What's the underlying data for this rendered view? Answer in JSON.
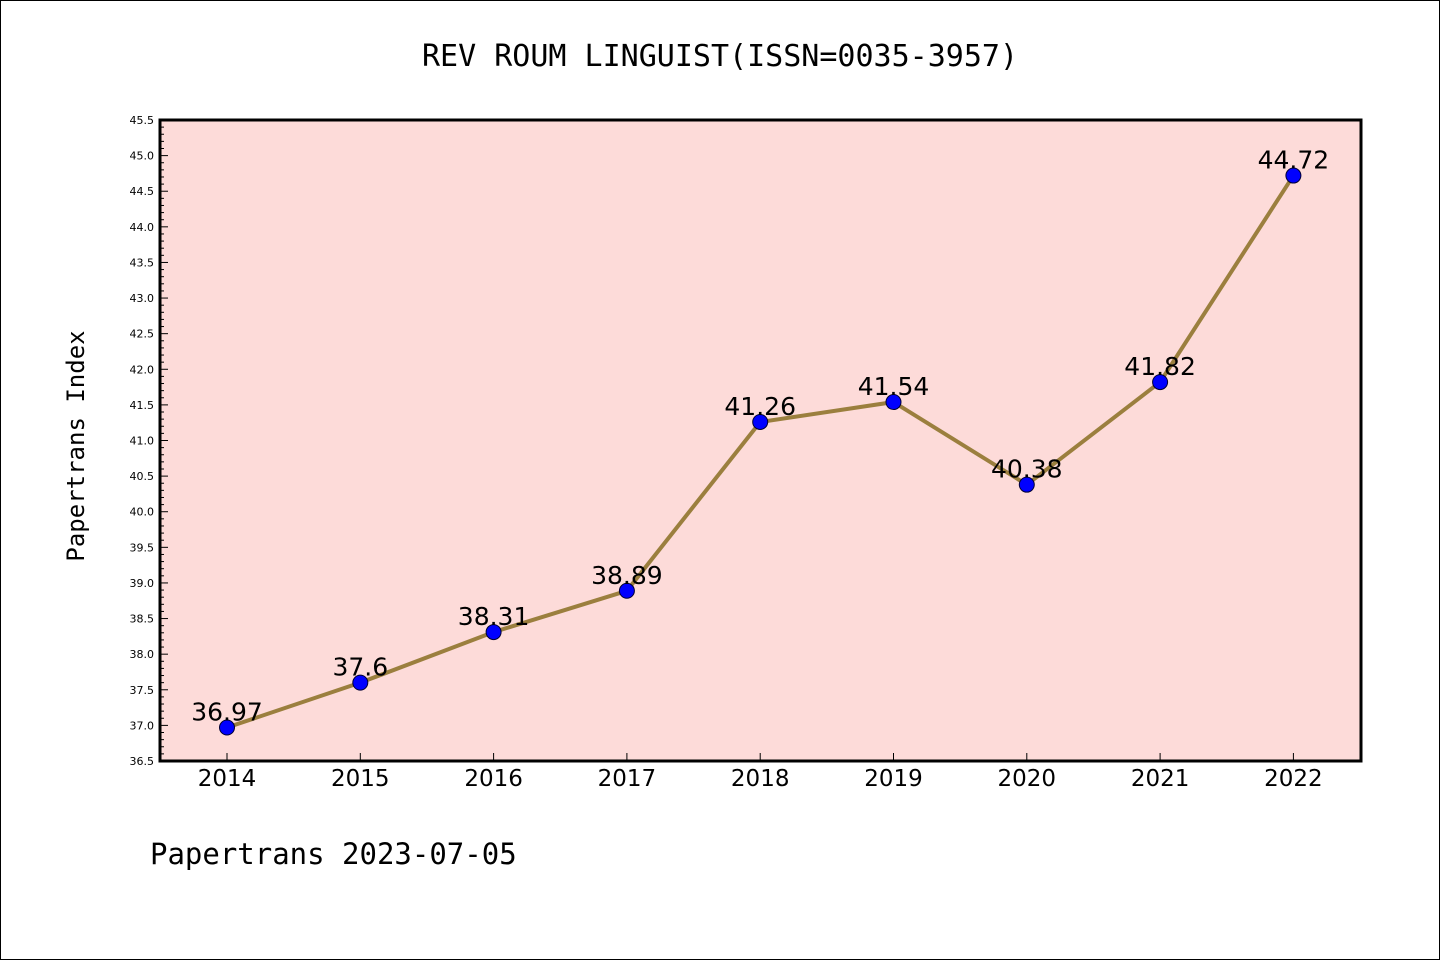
{
  "chart_data": {
    "type": "line",
    "title": "REV ROUM LINGUIST(ISSN=0035-3957)",
    "xlabel": "",
    "ylabel": "Papertrans Index",
    "categories": [
      "2014",
      "2015",
      "2016",
      "2017",
      "2018",
      "2019",
      "2020",
      "2021",
      "2022"
    ],
    "series": [
      {
        "values": [
          36.97,
          37.6,
          38.31,
          38.89,
          41.26,
          41.54,
          40.38,
          41.82,
          44.72
        ],
        "data_labels": [
          "36.97",
          "37.6",
          "38.31",
          "38.89",
          "41.26",
          "41.54",
          "40.38",
          "41.82",
          "44.72"
        ]
      }
    ],
    "ylim": [
      36.5,
      45.5
    ],
    "yticks": [
      "36.5",
      "37.0",
      "37.5",
      "38.0",
      "38.5",
      "39.0",
      "39.5",
      "40.0",
      "40.5",
      "41.0",
      "41.5",
      "42.0",
      "42.5",
      "43.0",
      "43.5",
      "44.0",
      "44.5",
      "45.0",
      "45.5"
    ],
    "grid": false,
    "colors": {
      "plot_background": "#fddbd9",
      "line": "#9b7f3e",
      "marker": "#0000ff"
    }
  },
  "footer": "Papertrans 2023-07-05"
}
